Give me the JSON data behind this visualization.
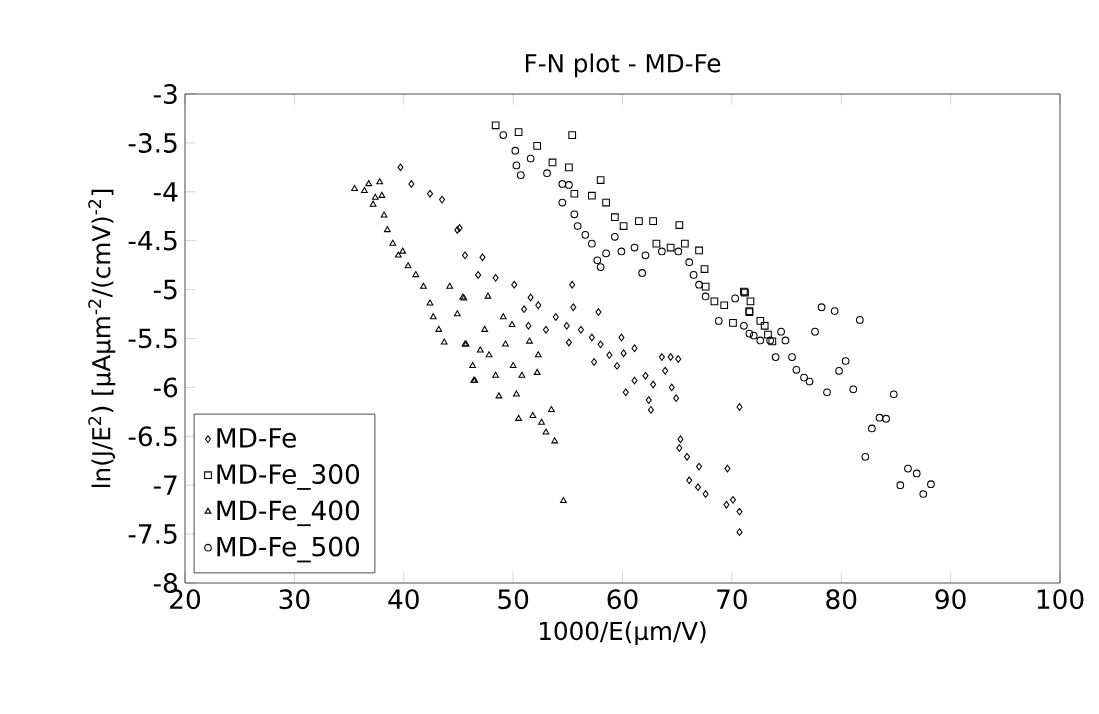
{
  "chart_data": {
    "type": "scatter",
    "title": "F-N plot - MD-Fe",
    "xlabel": "1000/E(µm/V)",
    "ylabel": "ln(J/E$^{2}$) [µAµm$^{-2}$/(cmV)$^{-2}$]",
    "xlim": [
      20,
      100
    ],
    "xticks": [
      20,
      30,
      40,
      50,
      60,
      70,
      80,
      90,
      100
    ],
    "ylim": [
      -8,
      -3
    ],
    "yticks": [
      -3,
      -3.5,
      -4,
      -4.5,
      -5,
      -5.5,
      -6,
      -6.5,
      -7,
      -7.5,
      -8
    ],
    "grid": false,
    "legend": "bottom left",
    "series": [
      {
        "name": "MD-Fe",
        "color": "#000000",
        "marker": "diamond",
        "x": [
          39.7,
          40.7,
          42.4,
          43.5,
          44.9,
          45.1,
          45.6,
          47.2,
          46.8,
          48.4,
          50.1,
          51.6,
          51.0,
          52.3,
          51.4,
          53.0,
          53.9,
          54.9,
          55.4,
          55.5,
          55.1,
          56.2,
          57.2,
          57.8,
          57.4,
          58.0,
          58.8,
          59.9,
          59.5,
          60.1,
          60.3,
          61.1,
          61.1,
          62.1,
          62.8,
          62.4,
          62.6,
          63.6,
          64.4,
          63.9,
          64.5,
          64.9,
          65.1,
          65.3,
          65.2,
          65.9,
          67.0,
          66.1,
          66.9,
          67.6,
          69.6,
          69.5,
          70.1,
          70.7,
          70.7,
          70.7
        ],
        "values": [
          -3.75,
          -3.92,
          -4.02,
          -4.08,
          -4.39,
          -4.37,
          -4.65,
          -4.67,
          -4.85,
          -4.88,
          -4.95,
          -5.08,
          -5.2,
          -5.16,
          -5.37,
          -5.41,
          -5.28,
          -5.37,
          -4.95,
          -5.18,
          -5.54,
          -5.41,
          -5.49,
          -5.23,
          -5.74,
          -5.56,
          -5.67,
          -5.49,
          -5.78,
          -5.65,
          -6.05,
          -5.6,
          -5.93,
          -5.88,
          -5.97,
          -6.13,
          -6.23,
          -5.69,
          -5.69,
          -5.83,
          -6.0,
          -6.11,
          -5.71,
          -6.53,
          -6.62,
          -6.71,
          -6.81,
          -6.95,
          -7.02,
          -7.09,
          -6.83,
          -7.2,
          -7.15,
          -7.27,
          -7.48,
          -6.2
        ]
      },
      {
        "name": "MD-Fe_300",
        "color": "#000000",
        "marker": "square",
        "x": [
          48.4,
          50.5,
          52.2,
          53.6,
          55.1,
          55.4,
          55.6,
          57.2,
          58.0,
          58.5,
          59.3,
          60.1,
          61.5,
          62.8,
          65.2,
          63.1,
          64.4,
          65.7,
          67.0,
          67.5,
          67.6,
          68.4,
          69.3,
          71.1,
          71.6,
          70.1,
          71.2,
          71.7,
          71.6,
          72.6,
          73.0,
          73.3,
          73.7
        ],
        "values": [
          -3.32,
          -3.39,
          -3.53,
          -3.7,
          -3.75,
          -3.42,
          -4.02,
          -4.04,
          -3.88,
          -4.11,
          -4.26,
          -4.35,
          -4.3,
          -4.3,
          -4.34,
          -4.53,
          -4.57,
          -4.53,
          -4.6,
          -4.79,
          -4.97,
          -5.12,
          -5.16,
          -5.02,
          -5.23,
          -5.34,
          -5.03,
          -5.12,
          -5.22,
          -5.32,
          -5.37,
          -5.46,
          -5.53
        ]
      },
      {
        "name": "MD-Fe_400",
        "color": "#000000",
        "marker": "triangle",
        "x": [
          35.5,
          36.4,
          36.8,
          37.4,
          37.8,
          38.0,
          37.2,
          38.2,
          38.5,
          39.0,
          39.5,
          39.9,
          40.4,
          41.1,
          41.8,
          42.4,
          42.7,
          43.2,
          43.7,
          44.2,
          44.9,
          45.4,
          45.7,
          46.3,
          46.5,
          45.5,
          45.6,
          46.4,
          47.0,
          47.4,
          47.7,
          47.8,
          48.4,
          48.7,
          49.1,
          49.3,
          49.9,
          50.0,
          50.3,
          50.5,
          50.8,
          51.5,
          51.8,
          52.2,
          52.3,
          52.6,
          53.0,
          53.5,
          53.8,
          54.6
        ],
        "values": [
          -3.97,
          -3.99,
          -3.92,
          -4.06,
          -3.9,
          -4.04,
          -4.13,
          -4.24,
          -4.39,
          -4.53,
          -4.65,
          -4.61,
          -4.76,
          -4.85,
          -4.97,
          -5.14,
          -5.28,
          -5.41,
          -5.54,
          -4.97,
          -5.25,
          -5.08,
          -5.56,
          -5.78,
          -5.93,
          -5.09,
          -5.56,
          -5.93,
          -5.62,
          -5.41,
          -5.07,
          -5.67,
          -5.88,
          -6.09,
          -5.28,
          -5.56,
          -5.36,
          -5.78,
          -6.07,
          -6.32,
          -5.88,
          -5.53,
          -6.29,
          -5.85,
          -5.67,
          -6.36,
          -6.46,
          -6.23,
          -6.55,
          -7.16
        ]
      },
      {
        "name": "MD-Fe_500",
        "color": "#000000",
        "marker": "circle",
        "x": [
          49.1,
          50.2,
          50.3,
          50.7,
          51.6,
          53.1,
          54.5,
          55.1,
          54.5,
          55.6,
          55.9,
          56.6,
          57.2,
          57.7,
          58.0,
          58.5,
          59.3,
          59.9,
          61.1,
          61.8,
          62.1,
          63.6,
          65.1,
          66.1,
          66.5,
          67.0,
          67.6,
          68.8,
          70.3,
          71.6,
          71.1,
          72.0,
          72.6,
          73.5,
          74.5,
          74.9,
          74.0,
          75.5,
          75.9,
          76.6,
          77.1,
          77.6,
          78.2,
          79.4,
          78.7,
          79.8,
          80.4,
          81.1,
          81.7,
          82.2,
          82.8,
          83.5,
          84.1,
          84.8,
          85.4,
          86.1,
          86.9,
          87.5,
          88.2
        ],
        "values": [
          -3.42,
          -3.58,
          -3.73,
          -3.83,
          -3.66,
          -3.81,
          -3.92,
          -3.93,
          -4.11,
          -4.23,
          -4.35,
          -4.44,
          -4.53,
          -4.7,
          -4.77,
          -4.63,
          -4.46,
          -4.61,
          -4.57,
          -4.83,
          -4.65,
          -4.61,
          -4.61,
          -4.72,
          -4.85,
          -4.95,
          -5.07,
          -5.32,
          -5.09,
          -5.45,
          -5.37,
          -5.47,
          -5.52,
          -5.52,
          -5.43,
          -5.52,
          -5.69,
          -5.69,
          -5.82,
          -5.9,
          -5.94,
          -5.43,
          -5.18,
          -5.22,
          -6.05,
          -5.83,
          -5.73,
          -6.02,
          -5.31,
          -6.71,
          -6.42,
          -6.31,
          -6.32,
          -6.07,
          -7.0,
          -6.83,
          -6.88,
          -7.09,
          -6.99
        ]
      }
    ]
  }
}
